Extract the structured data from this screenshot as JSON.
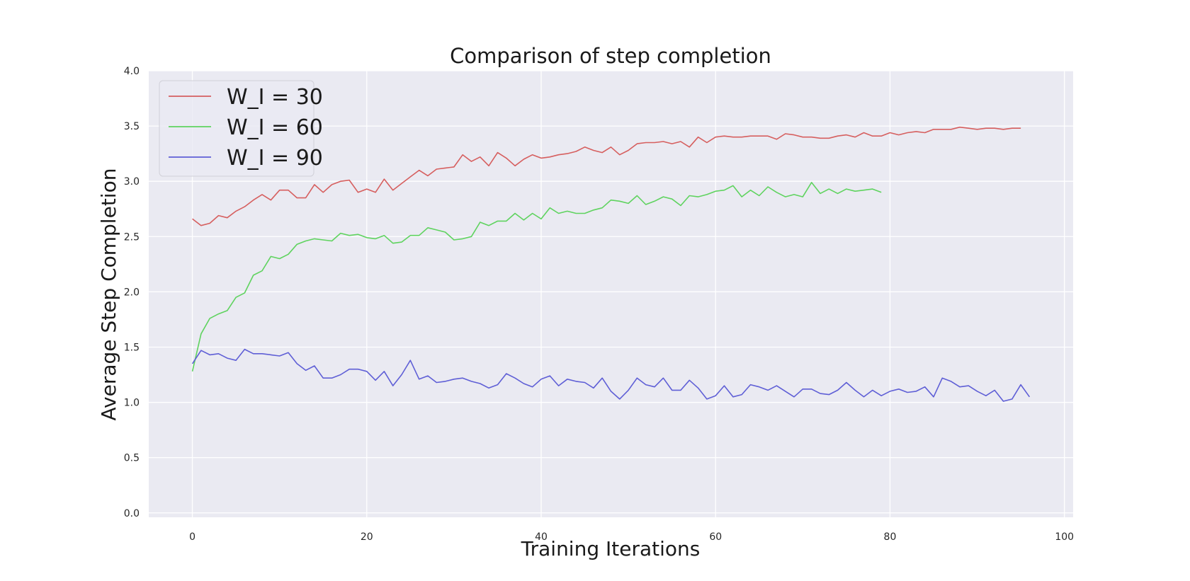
{
  "chart_data": {
    "type": "line",
    "title": "Comparison of step completion",
    "xlabel": "Training Iterations",
    "ylabel": "Average Step Completion",
    "xlim": [
      -5,
      101
    ],
    "ylim": [
      -0.04,
      4.0
    ],
    "xticks": [
      0,
      20,
      40,
      60,
      80,
      100
    ],
    "yticks": [
      "0.0",
      "0.5",
      "1.0",
      "1.5",
      "2.0",
      "2.5",
      "3.0",
      "3.5",
      "4.0"
    ],
    "grid": true,
    "legend_position": "top-left",
    "background_color": "#eaeaf2",
    "grid_color": "#ffffff",
    "series": [
      {
        "name": "W_I = 30",
        "color": "#d65f5f",
        "values": [
          2.66,
          2.6,
          2.62,
          2.69,
          2.67,
          2.73,
          2.77,
          2.83,
          2.88,
          2.83,
          2.92,
          2.92,
          2.85,
          2.85,
          2.97,
          2.9,
          2.97,
          3.0,
          3.01,
          2.9,
          2.93,
          2.9,
          3.02,
          2.92,
          2.98,
          3.04,
          3.1,
          3.05,
          3.11,
          3.12,
          3.13,
          3.24,
          3.18,
          3.22,
          3.14,
          3.26,
          3.21,
          3.14,
          3.2,
          3.24,
          3.21,
          3.22,
          3.24,
          3.25,
          3.27,
          3.31,
          3.28,
          3.26,
          3.31,
          3.24,
          3.28,
          3.34,
          3.35,
          3.35,
          3.36,
          3.34,
          3.36,
          3.31,
          3.4,
          3.35,
          3.4,
          3.41,
          3.4,
          3.4,
          3.41,
          3.41,
          3.41,
          3.38,
          3.43,
          3.42,
          3.4,
          3.4,
          3.39,
          3.39,
          3.41,
          3.42,
          3.4,
          3.44,
          3.41,
          3.41,
          3.44,
          3.42,
          3.44,
          3.45,
          3.44,
          3.47,
          3.47,
          3.47,
          3.49,
          3.48,
          3.47,
          3.48,
          3.48,
          3.47,
          3.48,
          3.48
        ]
      },
      {
        "name": "W_I = 60",
        "color": "#5fd35f",
        "values": [
          1.28,
          1.62,
          1.76,
          1.8,
          1.83,
          1.95,
          1.99,
          2.15,
          2.19,
          2.32,
          2.3,
          2.34,
          2.43,
          2.46,
          2.48,
          2.47,
          2.46,
          2.53,
          2.51,
          2.52,
          2.49,
          2.48,
          2.51,
          2.44,
          2.45,
          2.51,
          2.51,
          2.58,
          2.56,
          2.54,
          2.47,
          2.48,
          2.5,
          2.63,
          2.6,
          2.64,
          2.64,
          2.71,
          2.65,
          2.71,
          2.66,
          2.76,
          2.71,
          2.73,
          2.71,
          2.71,
          2.74,
          2.76,
          2.83,
          2.82,
          2.8,
          2.87,
          2.79,
          2.82,
          2.86,
          2.84,
          2.78,
          2.87,
          2.86,
          2.88,
          2.91,
          2.92,
          2.96,
          2.86,
          2.92,
          2.87,
          2.95,
          2.9,
          2.86,
          2.88,
          2.86,
          2.99,
          2.89,
          2.93,
          2.89,
          2.93,
          2.91,
          2.92,
          2.93,
          2.9
        ]
      },
      {
        "name": "W_I = 90",
        "color": "#5f5fd6",
        "values": [
          1.35,
          1.47,
          1.43,
          1.44,
          1.4,
          1.38,
          1.48,
          1.44,
          1.44,
          1.43,
          1.42,
          1.45,
          1.35,
          1.29,
          1.33,
          1.22,
          1.22,
          1.25,
          1.3,
          1.3,
          1.28,
          1.2,
          1.28,
          1.15,
          1.25,
          1.38,
          1.21,
          1.24,
          1.18,
          1.19,
          1.21,
          1.22,
          1.19,
          1.17,
          1.13,
          1.16,
          1.26,
          1.22,
          1.17,
          1.14,
          1.21,
          1.24,
          1.15,
          1.21,
          1.19,
          1.18,
          1.13,
          1.22,
          1.1,
          1.03,
          1.11,
          1.22,
          1.16,
          1.14,
          1.22,
          1.11,
          1.11,
          1.2,
          1.13,
          1.03,
          1.06,
          1.15,
          1.05,
          1.07,
          1.16,
          1.14,
          1.11,
          1.15,
          1.1,
          1.05,
          1.12,
          1.12,
          1.08,
          1.07,
          1.11,
          1.18,
          1.11,
          1.05,
          1.11,
          1.06,
          1.1,
          1.12,
          1.09,
          1.1,
          1.14,
          1.05,
          1.22,
          1.19,
          1.14,
          1.15,
          1.1,
          1.06,
          1.11,
          1.01,
          1.03,
          1.16,
          1.05
        ]
      }
    ]
  }
}
